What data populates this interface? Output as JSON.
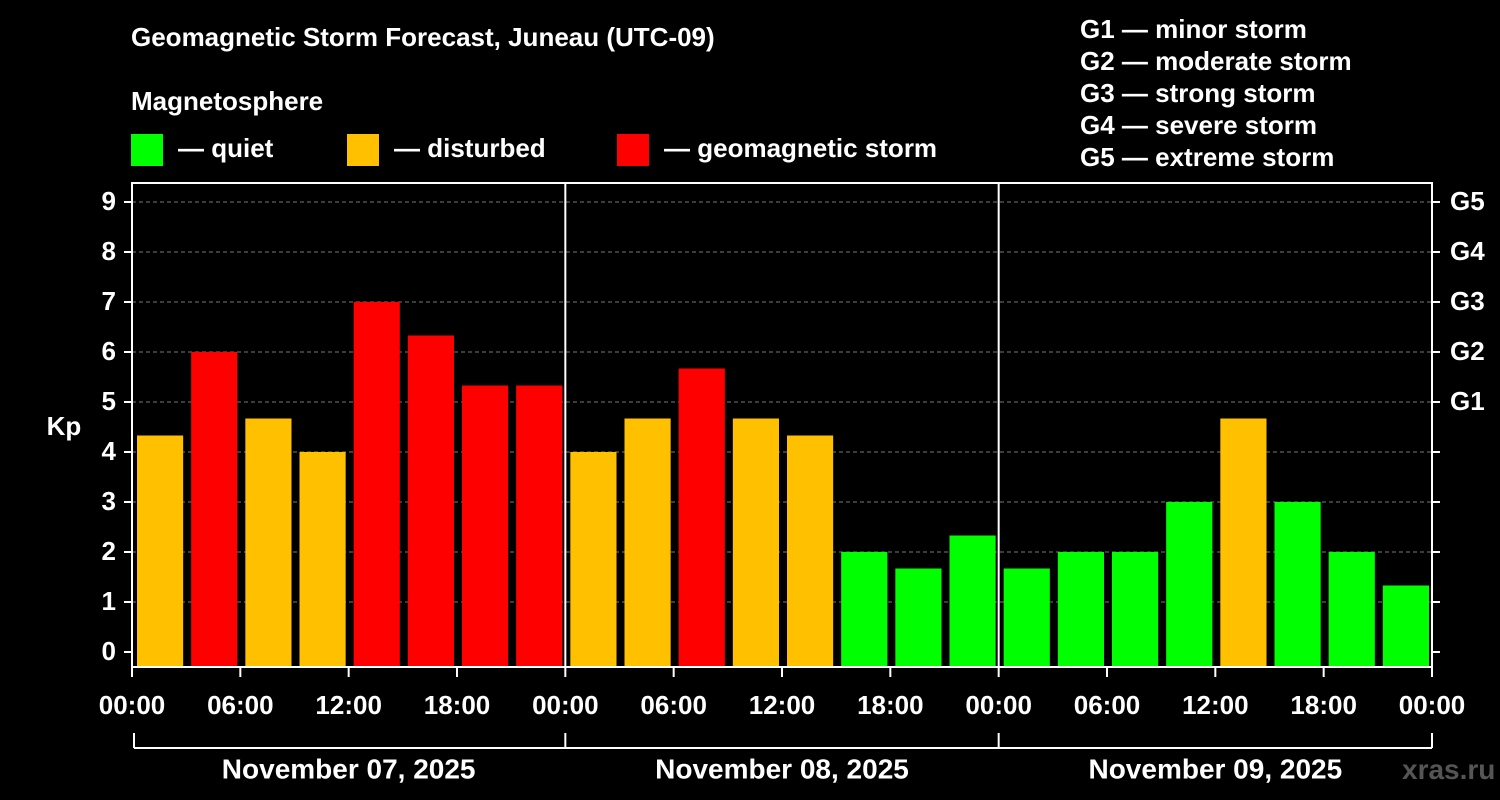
{
  "title": "Geomagnetic Storm Forecast, Juneau (UTC-09)",
  "legend": {
    "heading": "Magnetosphere",
    "items": [
      {
        "label": "— quiet",
        "color": "#00ff00"
      },
      {
        "label": "— disturbed",
        "color": "#ffc000"
      },
      {
        "label": "— geomagnetic storm",
        "color": "#ff0000"
      }
    ]
  },
  "g_scale": [
    "G1 — minor storm",
    "G2 — moderate storm",
    "G3 — strong storm",
    "G4 — severe storm",
    "G5 — extreme storm"
  ],
  "watermark": "xras.ru",
  "chart_data": {
    "type": "bar",
    "ylabel": "Kp",
    "ylim": [
      0,
      9
    ],
    "yticks": [
      0,
      1,
      2,
      3,
      4,
      5,
      6,
      7,
      8,
      9
    ],
    "right_ticks": [
      {
        "value": 5,
        "label": "G1"
      },
      {
        "value": 6,
        "label": "G2"
      },
      {
        "value": 7,
        "label": "G3"
      },
      {
        "value": 8,
        "label": "G4"
      },
      {
        "value": 9,
        "label": "G5"
      }
    ],
    "grid": true,
    "xtick_labels": [
      "00:00",
      "06:00",
      "12:00",
      "18:00",
      "00:00",
      "06:00",
      "12:00",
      "18:00",
      "00:00",
      "06:00",
      "12:00",
      "18:00",
      "00:00"
    ],
    "days": [
      "November 07, 2025",
      "November 08, 2025",
      "November 09, 2025"
    ],
    "values": [
      4.33,
      6.0,
      4.67,
      4.0,
      7.0,
      6.33,
      5.33,
      5.33,
      4.0,
      4.67,
      5.67,
      4.67,
      4.33,
      2.0,
      1.67,
      2.33,
      1.67,
      2.0,
      2.0,
      3.0,
      4.67,
      3.0,
      2.0,
      1.33
    ],
    "colors": {
      "quiet": "#00ff00",
      "disturbed": "#ffc000",
      "storm": "#ff0000"
    }
  }
}
